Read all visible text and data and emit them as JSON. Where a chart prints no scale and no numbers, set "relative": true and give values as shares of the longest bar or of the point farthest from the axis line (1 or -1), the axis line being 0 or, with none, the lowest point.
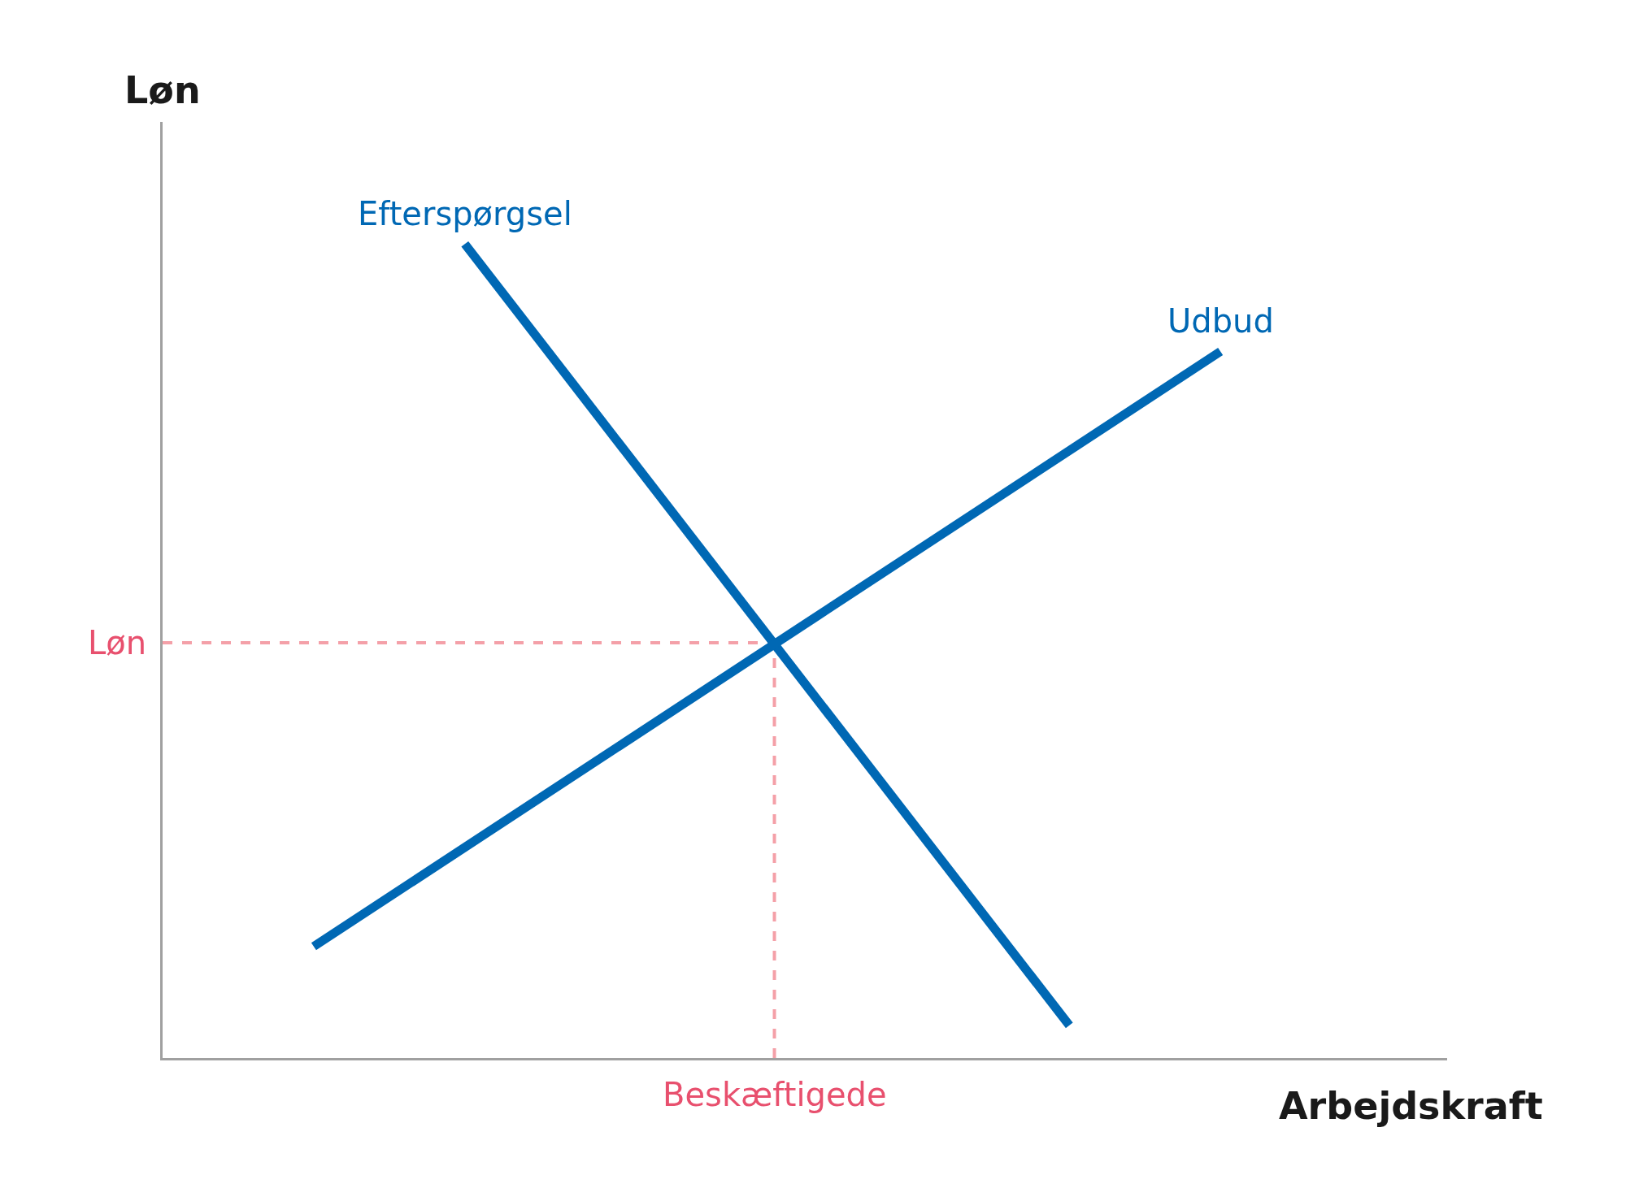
{
  "chart_data": {
    "type": "line",
    "relative": true,
    "xlabel": "Arbejdskraft",
    "ylabel": "Løn",
    "categories": [
      null,
      null,
      null,
      null,
      null,
      null,
      null,
      null,
      null
    ],
    "series": [
      {
        "name": "Efterspørgsel",
        "color": "#0068b4",
        "values": [
          null,
          null,
          1,
          null,
          null,
          null,
          0.04,
          null,
          null
        ]
      },
      {
        "name": "Udbud",
        "color": "#0068b4",
        "values": [
          null,
          0.137,
          null,
          null,
          null,
          null,
          null,
          0.868,
          null
        ]
      }
    ],
    "ref_lines": [
      {
        "axis": "y",
        "value": 0.51,
        "label": "Løn",
        "color": "#f4a0a8",
        "line_style": "dashed"
      }
    ],
    "annotations": [
      "Beskæftigede"
    ],
    "grid": false,
    "legend": false,
    "marker": "none",
    "line_style": "solid"
  }
}
